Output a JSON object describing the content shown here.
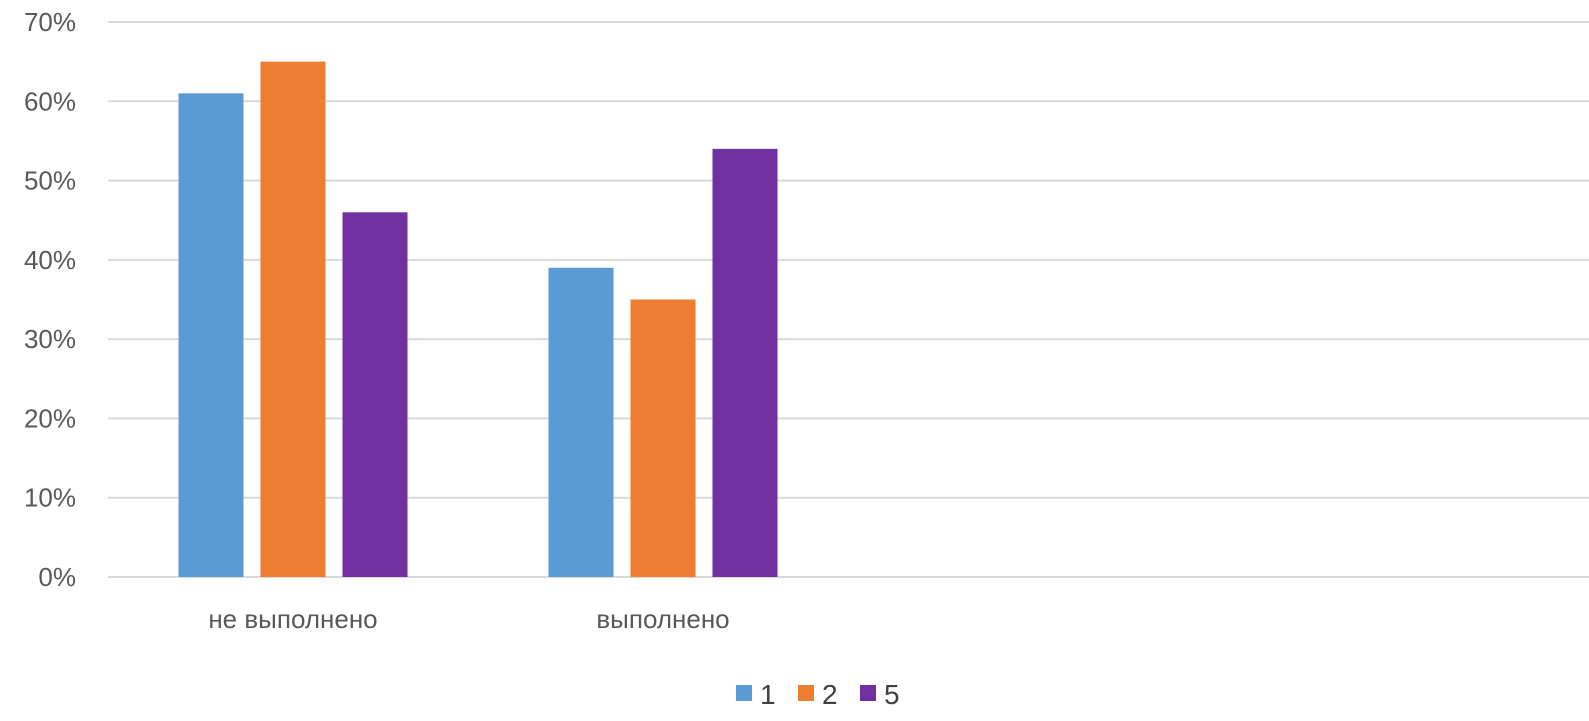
{
  "chart_data": {
    "type": "bar",
    "title": "",
    "xlabel": "",
    "ylabel": "",
    "categories": [
      "не выполнено",
      "выполнено"
    ],
    "series": [
      {
        "name": "1",
        "color": "#5b9bd5",
        "values": [
          61,
          39
        ]
      },
      {
        "name": "2",
        "color": "#ed7d31",
        "values": [
          65,
          35
        ]
      },
      {
        "name": "5",
        "color": "#7030a0",
        "values": [
          46,
          54
        ]
      }
    ],
    "ylim": [
      0,
      70
    ],
    "y_ticks": [
      "0%",
      "10%",
      "20%",
      "30%",
      "40%",
      "50%",
      "60%",
      "70%"
    ],
    "y_tick_values": [
      0,
      10,
      20,
      30,
      40,
      50,
      60,
      70
    ],
    "grid": true,
    "legend_position": "bottom"
  }
}
